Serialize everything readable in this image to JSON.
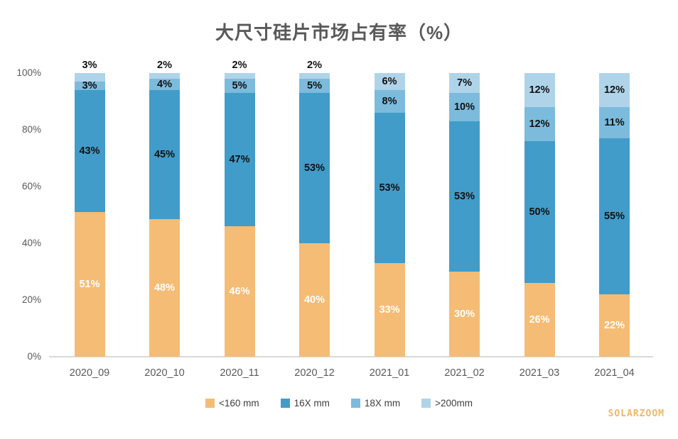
{
  "title": "大尺寸硅片市场占有率（%）",
  "watermark": "SOLARZOOM",
  "chart_data": {
    "type": "bar",
    "stacked": true,
    "title": "大尺寸硅片市场占有率（%）",
    "categories": [
      "2020_09",
      "2020_10",
      "2020_11",
      "2020_12",
      "2021_01",
      "2021_02",
      "2021_03",
      "2021_04"
    ],
    "series": [
      {
        "name": "<160 mm",
        "color": "#f5bc75",
        "label_color": "#ffffff",
        "values": [
          51,
          48,
          46,
          40,
          33,
          30,
          26,
          22
        ]
      },
      {
        "name": "16X mm",
        "color": "#419cc9",
        "label_color": "#111111",
        "values": [
          43,
          45,
          47,
          53,
          53,
          53,
          50,
          55
        ]
      },
      {
        "name": "18X mm",
        "color": "#7cbbdc",
        "label_color": "#111111",
        "values": [
          3,
          4,
          5,
          5,
          8,
          10,
          12,
          11
        ]
      },
      {
        "name": ">200mm",
        "color": "#afd4ea",
        "label_color": "#111111",
        "values": [
          3,
          2,
          2,
          2,
          6,
          7,
          12,
          12
        ]
      }
    ],
    "value_labels": [
      [
        "51%",
        "48%",
        "46%",
        "40%",
        "33%",
        "30%",
        "26%",
        "22%"
      ],
      [
        "43%",
        "45%",
        "47%",
        "53%",
        "53%",
        "53%",
        "50%",
        "55%"
      ],
      [
        "3%",
        "4%",
        "5%",
        "5%",
        "8%",
        "10%",
        "12%",
        "11%"
      ],
      [
        "3%",
        "2%",
        "2%",
        "2%",
        "6%",
        "7%",
        "12%",
        "12%"
      ]
    ],
    "y_ticks": [
      {
        "label": "0%",
        "value": 0
      },
      {
        "label": "20%",
        "value": 20
      },
      {
        "label": "40%",
        "value": 40
      },
      {
        "label": "60%",
        "value": 60
      },
      {
        "label": "80%",
        "value": 80
      },
      {
        "label": "100%",
        "value": 100
      }
    ],
    "ylim": [
      0,
      100
    ],
    "grid": false,
    "legend_position": "bottom",
    "axis_color": "#d9d9d9",
    "text_color": "#595959"
  }
}
